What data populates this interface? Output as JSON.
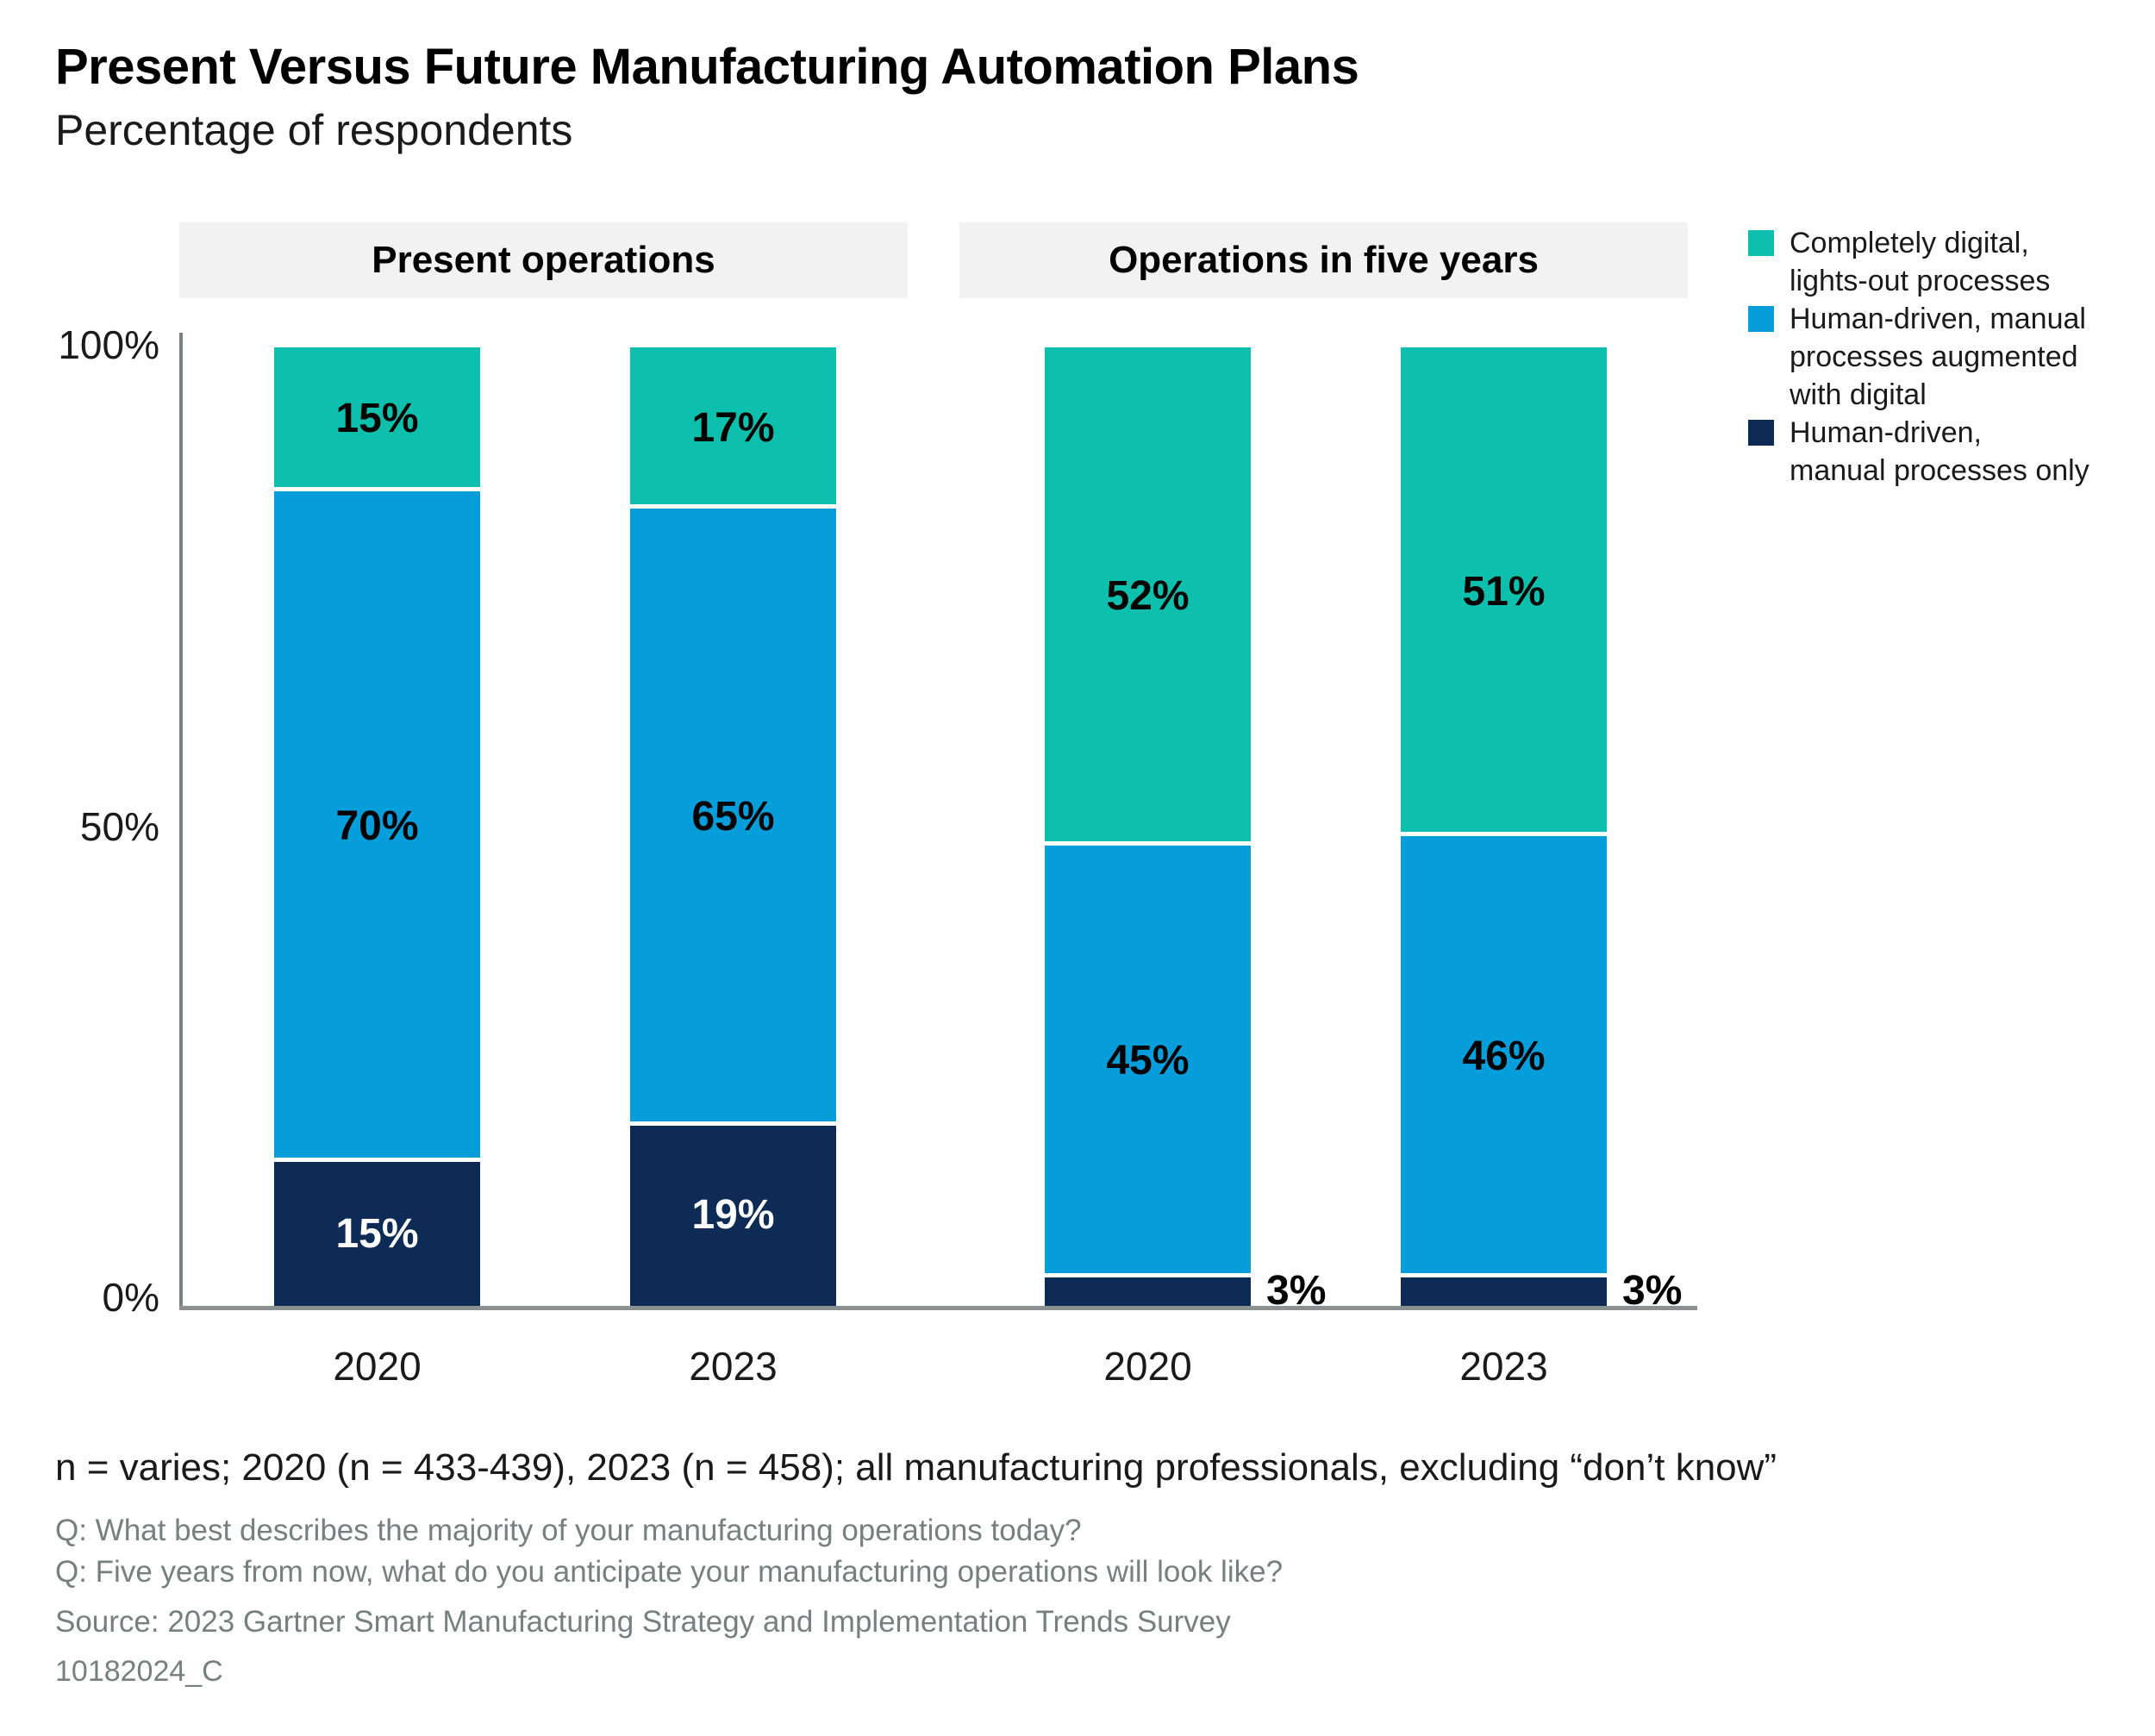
{
  "title": "Present Versus Future Manufacturing Automation Plans",
  "subtitle": "Percentage of respondents",
  "group_headers": [
    "Present operations",
    "Operations in five years"
  ],
  "legend": {
    "items": [
      {
        "label": "Completely digital,\nlights-out processes",
        "color": "#0cc0ad"
      },
      {
        "label": "Human-driven, manual\nprocesses augmented\nwith digital",
        "color": "#059eda"
      },
      {
        "label": "Human-driven,\nmanual processes only",
        "color": "#0d2b55"
      }
    ]
  },
  "y_axis": {
    "ticks": [
      "100%",
      "50%",
      "0%"
    ]
  },
  "x_axis": {
    "labels": [
      "2020",
      "2023",
      "2020",
      "2023"
    ]
  },
  "footnotes": {
    "sample": "n = varies; 2020 (n = 433-439), 2023 (n = 458); all manufacturing professionals, excluding “don’t know”",
    "q1": "Q: What best describes the majority of your manufacturing operations today?",
    "q2": "Q: Five years from now, what do you anticipate your manufacturing operations will look like?",
    "source": "Source: 2023 Gartner Smart Manufacturing Strategy and Implementation Trends Survey",
    "doc_id": "10182024_C"
  },
  "chart_data": {
    "type": "bar",
    "stacked": true,
    "unit": "%",
    "title": "Present Versus Future Manufacturing Automation Plans",
    "ylabel": "Percentage of respondents",
    "ylim": [
      0,
      100
    ],
    "y_ticks": [
      0,
      50,
      100
    ],
    "grid": false,
    "legend_position": "right",
    "group_spans": [
      {
        "label": "Present operations",
        "categories": [
          0,
          1
        ]
      },
      {
        "label": "Operations in five years",
        "categories": [
          2,
          3
        ]
      }
    ],
    "categories": [
      "2020",
      "2023",
      "2020",
      "2023"
    ],
    "series": [
      {
        "name": "Completely digital, lights-out processes",
        "color": "#0cc0ad",
        "values": [
          15,
          17,
          52,
          51
        ]
      },
      {
        "name": "Human-driven, manual processes augmented with digital",
        "color": "#059eda",
        "values": [
          70,
          65,
          45,
          46
        ]
      },
      {
        "name": "Human-driven, manual processes only",
        "color": "#0d2b55",
        "values": [
          15,
          19,
          3,
          3
        ]
      }
    ]
  }
}
